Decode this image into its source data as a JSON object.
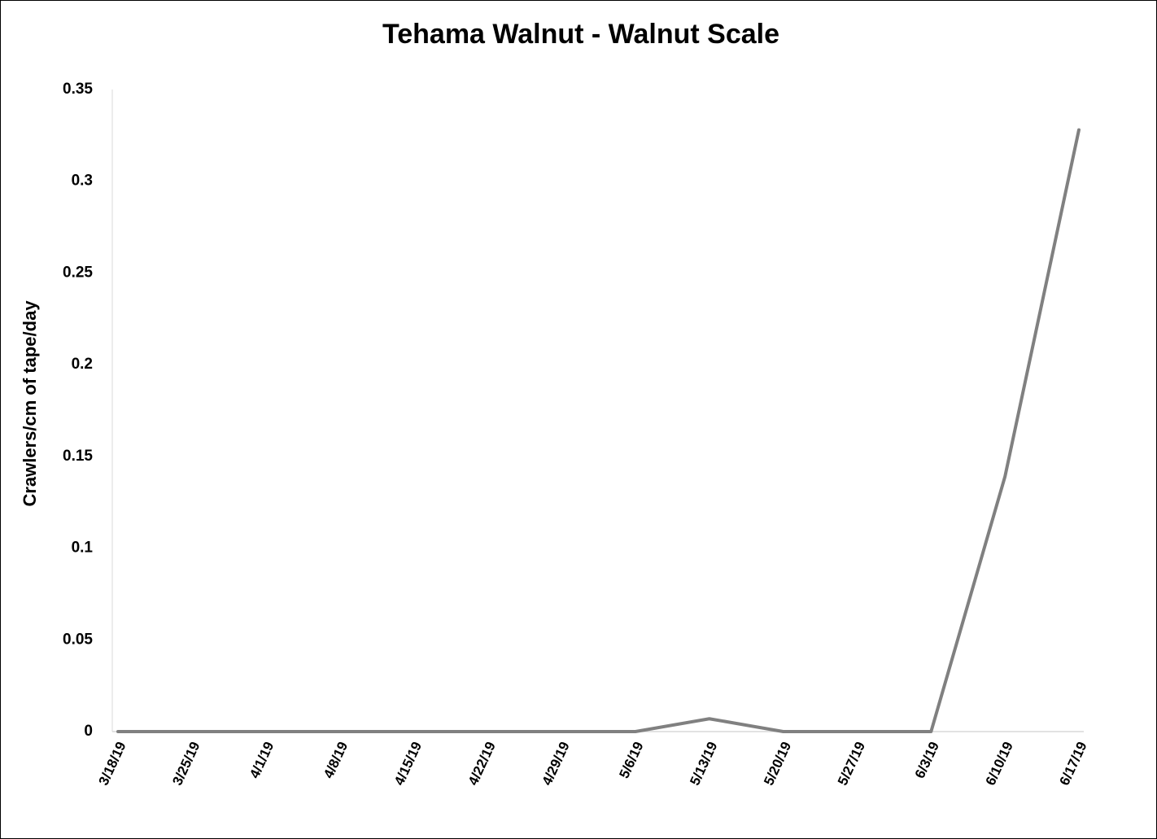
{
  "chart_data": {
    "type": "line",
    "title": "Tehama Walnut - Walnut Scale",
    "y_label": "Crawlers/cm of tape/day",
    "categories": [
      "3/18/19",
      "3/25/19",
      "4/1/19",
      "4/8/19",
      "4/15/19",
      "4/22/19",
      "4/29/19",
      "5/6/19",
      "5/13/19",
      "5/20/19",
      "5/27/19",
      "6/3/19",
      "6/10/19",
      "6/17/19"
    ],
    "series": [
      {
        "name": "Walnut Scale",
        "color": "#808080",
        "values": [
          0,
          0,
          0,
          0,
          0,
          0,
          0,
          0,
          0.007,
          0,
          0,
          0,
          0.139,
          0.328
        ]
      }
    ],
    "ylim": [
      0,
      0.35
    ],
    "yticks": [
      0,
      0.05,
      0.1,
      0.15,
      0.2,
      0.25,
      0.3,
      0.35
    ],
    "grid": false
  }
}
